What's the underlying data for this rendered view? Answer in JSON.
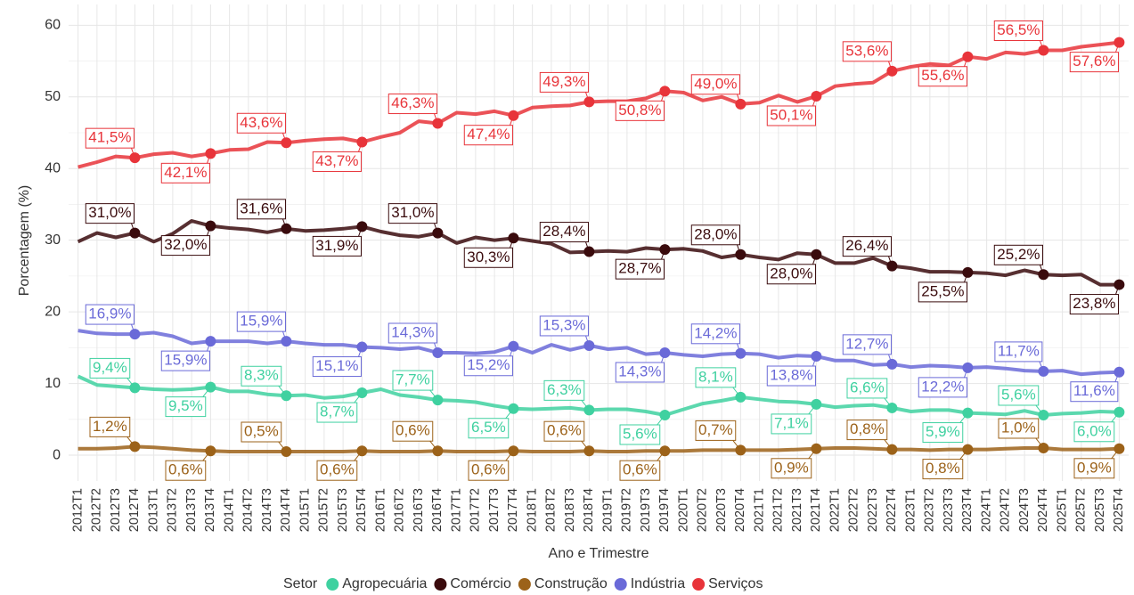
{
  "chart_data": {
    "type": "line",
    "x_label": "Ano e Trimestre",
    "y_label": "Porcentagem (%)",
    "legend_title": "Setor",
    "legend": "bottom",
    "grid": true,
    "categories": [
      "2012T1",
      "2012T2",
      "2012T3",
      "2012T4",
      "2013T1",
      "2013T2",
      "2013T3",
      "2013T4",
      "2014T1",
      "2014T2",
      "2014T3",
      "2014T4",
      "2015T1",
      "2015T2",
      "2015T3",
      "2015T4",
      "2016T1",
      "2016T2",
      "2016T3",
      "2016T4",
      "2017T1",
      "2017T2",
      "2017T3",
      "2017T4",
      "2018T1",
      "2018T2",
      "2018T3",
      "2018T4",
      "2019T1",
      "2019T2",
      "2019T3",
      "2019T4",
      "2020T1",
      "2020T2",
      "2020T3",
      "2020T4",
      "2021T1",
      "2021T2",
      "2021T3",
      "2021T4",
      "2022T1",
      "2022T2",
      "2022T3",
      "2022T4",
      "2023T1",
      "2023T2",
      "2023T3",
      "2023T4",
      "2024T1",
      "2024T2",
      "2024T3",
      "2024T4",
      "2025T1",
      "2025T2",
      "2025T3",
      "2025T4"
    ],
    "ylim": [
      -3.6,
      62.9
    ],
    "yticks": [
      0,
      10,
      20,
      30,
      40,
      50,
      60
    ],
    "series": [
      {
        "name": "Agropecuária",
        "color": "#3fd1a0",
        "values": [
          11.0,
          9.8,
          9.6,
          9.4,
          9.2,
          9.1,
          9.2,
          9.5,
          8.9,
          8.9,
          8.5,
          8.3,
          8.4,
          8.0,
          8.2,
          8.7,
          9.2,
          8.4,
          8.1,
          7.7,
          7.6,
          7.4,
          6.9,
          6.5,
          6.4,
          6.5,
          6.6,
          6.3,
          6.4,
          6.4,
          6.1,
          5.6,
          6.4,
          7.2,
          7.6,
          8.1,
          7.8,
          7.5,
          7.4,
          7.1,
          6.7,
          6.9,
          7.0,
          6.6,
          6.1,
          6.3,
          6.3,
          5.9,
          5.8,
          5.7,
          6.2,
          5.6,
          5.8,
          5.9,
          6.1,
          6.0
        ],
        "value_labels": [
          null,
          null,
          null,
          "9,4%",
          null,
          null,
          null,
          "9,5%",
          null,
          null,
          null,
          "8,3%",
          null,
          null,
          null,
          "8,7%",
          null,
          null,
          null,
          "7,7%",
          null,
          null,
          null,
          "6,5%",
          null,
          null,
          null,
          "6,3%",
          null,
          null,
          null,
          "5,6%",
          null,
          null,
          null,
          "8,1%",
          null,
          null,
          null,
          "7,1%",
          null,
          null,
          null,
          "6,6%",
          null,
          null,
          null,
          "5,9%",
          null,
          null,
          null,
          "5,6%",
          null,
          null,
          null,
          "6,0%"
        ]
      },
      {
        "name": "Comércio",
        "color": "#3a0b0d",
        "values": [
          29.8,
          31.0,
          30.4,
          31.0,
          29.8,
          30.9,
          32.7,
          32.0,
          31.7,
          31.5,
          31.1,
          31.6,
          31.3,
          31.4,
          31.6,
          31.9,
          31.2,
          30.7,
          30.5,
          31.0,
          29.6,
          30.4,
          30.0,
          30.3,
          29.9,
          29.5,
          28.3,
          28.4,
          28.5,
          28.4,
          28.9,
          28.7,
          28.8,
          28.5,
          27.6,
          28.0,
          27.6,
          27.3,
          28.2,
          28.0,
          26.8,
          26.8,
          27.5,
          26.4,
          26.1,
          25.6,
          25.6,
          25.5,
          25.4,
          25.1,
          25.8,
          25.2,
          25.1,
          25.2,
          23.8,
          23.8
        ],
        "value_labels": [
          null,
          null,
          null,
          "31,0%",
          null,
          null,
          null,
          "32,0%",
          null,
          null,
          null,
          "31,6%",
          null,
          null,
          null,
          "31,9%",
          null,
          null,
          null,
          "31,0%",
          null,
          null,
          null,
          "30,3%",
          null,
          null,
          null,
          "28,4%",
          null,
          null,
          null,
          "28,7%",
          null,
          null,
          null,
          "28,0%",
          null,
          null,
          null,
          "28,0%",
          null,
          null,
          null,
          "26,4%",
          null,
          null,
          null,
          "25,5%",
          null,
          null,
          null,
          "25,2%",
          null,
          null,
          null,
          "23,8%"
        ]
      },
      {
        "name": "Construção",
        "color": "#9c6219",
        "values": [
          0.9,
          0.9,
          1.0,
          1.2,
          1.1,
          0.9,
          0.7,
          0.6,
          0.5,
          0.5,
          0.5,
          0.5,
          0.5,
          0.5,
          0.5,
          0.6,
          0.5,
          0.5,
          0.5,
          0.6,
          0.5,
          0.5,
          0.5,
          0.6,
          0.5,
          0.5,
          0.5,
          0.6,
          0.5,
          0.5,
          0.6,
          0.6,
          0.6,
          0.7,
          0.7,
          0.7,
          0.7,
          0.7,
          0.8,
          0.9,
          1.0,
          1.0,
          0.9,
          0.8,
          0.8,
          0.7,
          0.8,
          0.8,
          0.8,
          0.9,
          1.0,
          1.0,
          0.8,
          0.8,
          0.8,
          0.9
        ],
        "value_labels": [
          null,
          null,
          null,
          "1,2%",
          null,
          null,
          null,
          "0,6%",
          null,
          null,
          null,
          "0,5%",
          null,
          null,
          null,
          "0,6%",
          null,
          null,
          null,
          "0,6%",
          null,
          null,
          null,
          "0,6%",
          null,
          null,
          null,
          "0,6%",
          null,
          null,
          null,
          "0,6%",
          null,
          null,
          null,
          "0,7%",
          null,
          null,
          null,
          "0,9%",
          null,
          null,
          null,
          "0,8%",
          null,
          null,
          null,
          "0,8%",
          null,
          null,
          null,
          "1,0%",
          null,
          null,
          null,
          "0,9%"
        ]
      },
      {
        "name": "Indústria",
        "color": "#6a6ad8",
        "values": [
          17.4,
          17.0,
          16.9,
          16.9,
          17.1,
          16.6,
          15.6,
          15.9,
          15.9,
          15.9,
          15.6,
          15.9,
          15.6,
          15.4,
          15.4,
          15.1,
          15.0,
          14.8,
          15.0,
          14.3,
          14.3,
          14.2,
          14.4,
          15.2,
          14.3,
          15.4,
          14.7,
          15.3,
          14.8,
          15.0,
          14.1,
          14.3,
          14.0,
          13.8,
          14.1,
          14.2,
          14.1,
          13.6,
          13.9,
          13.8,
          13.2,
          13.2,
          12.6,
          12.7,
          12.3,
          12.5,
          12.4,
          12.2,
          12.3,
          12.1,
          11.8,
          11.7,
          11.8,
          11.3,
          11.5,
          11.6
        ],
        "value_labels": [
          null,
          null,
          null,
          "16,9%",
          null,
          null,
          null,
          "15,9%",
          null,
          null,
          null,
          "15,9%",
          null,
          null,
          null,
          "15,1%",
          null,
          null,
          null,
          "14,3%",
          null,
          null,
          null,
          "15,2%",
          null,
          null,
          null,
          "15,3%",
          null,
          null,
          null,
          "14,3%",
          null,
          null,
          null,
          "14,2%",
          null,
          null,
          null,
          "13,8%",
          null,
          null,
          null,
          "12,7%",
          null,
          null,
          null,
          "12,2%",
          null,
          null,
          null,
          "11,7%",
          null,
          null,
          null,
          "11,6%"
        ]
      },
      {
        "name": "Serviços",
        "color": "#e8343a",
        "values": [
          40.2,
          40.9,
          41.7,
          41.5,
          42.0,
          42.2,
          41.7,
          42.1,
          42.6,
          42.7,
          43.7,
          43.6,
          43.9,
          44.1,
          44.2,
          43.7,
          44.4,
          45.0,
          46.6,
          46.3,
          47.8,
          47.6,
          48.0,
          47.4,
          48.5,
          48.7,
          48.8,
          49.3,
          49.4,
          49.4,
          49.8,
          50.8,
          50.6,
          49.5,
          50.0,
          49.0,
          49.2,
          50.2,
          49.3,
          50.1,
          51.5,
          51.8,
          52.0,
          53.6,
          54.2,
          54.6,
          54.4,
          55.6,
          55.3,
          56.2,
          56.0,
          56.5,
          56.5,
          57.0,
          57.3,
          57.6
        ],
        "value_labels": [
          null,
          null,
          null,
          "41,5%",
          null,
          null,
          null,
          "42,1%",
          null,
          null,
          null,
          "43,6%",
          null,
          null,
          null,
          "43,7%",
          null,
          null,
          null,
          "46,3%",
          null,
          null,
          null,
          "47,4%",
          null,
          null,
          null,
          "49,3%",
          null,
          null,
          null,
          "50,8%",
          null,
          null,
          null,
          "49,0%",
          null,
          null,
          null,
          "50,1%",
          null,
          null,
          null,
          "53,6%",
          null,
          null,
          null,
          "55,6%",
          null,
          null,
          null,
          "56,5%",
          null,
          null,
          null,
          "57,6%"
        ]
      }
    ]
  }
}
